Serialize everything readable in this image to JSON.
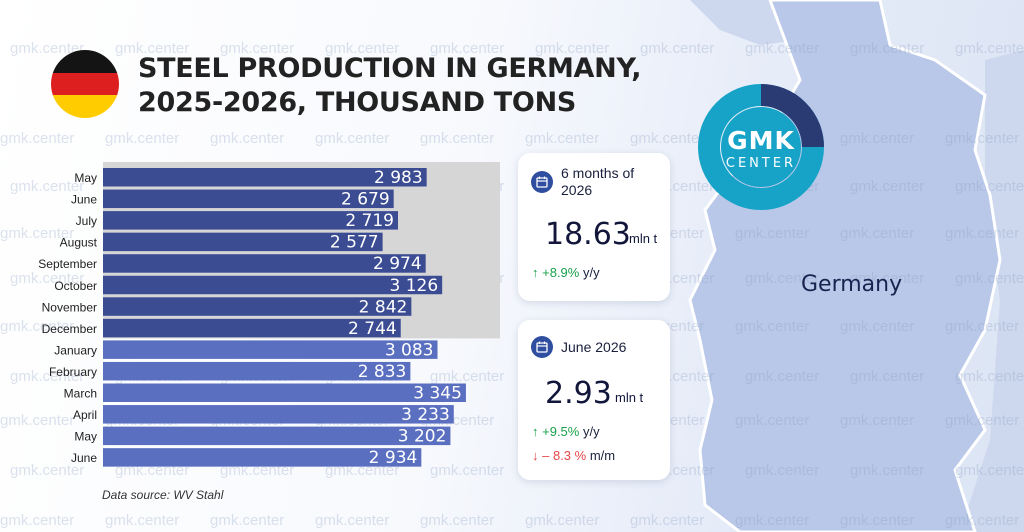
{
  "title": "STEEL PRODUCTION IN GERMANY, 2025-2026, THOUSAND TONS",
  "watermark_text": "gmk.center",
  "source": "Data source: WV Stahl",
  "country_label": "Germany",
  "logo": {
    "main": "GMK",
    "sub": "CENTER"
  },
  "colors": {
    "bar_2025": "#3b4c93",
    "bar_2026": "#5a6fc0",
    "highlight_bg": "#d6d6d6",
    "logo_ring": "#17a3c8",
    "logo_dark": "#2a3b74",
    "up": "#1aa04a",
    "down": "#e54848"
  },
  "card_half": {
    "icon": "calendar-icon",
    "heading": "6 months of 2026",
    "value": "18.63",
    "unit": "mln t",
    "change_value": "+8.9%",
    "change_suffix": "y/y"
  },
  "card_month": {
    "icon": "calendar-icon",
    "heading": "June 2026",
    "value": "2.93",
    "unit": "mln t",
    "change_yy_value": "+9.5%",
    "change_yy_suffix": "y/y",
    "change_mm_value": "– 8.3 %",
    "change_mm_suffix": "m/m"
  },
  "chart_data": {
    "type": "bar",
    "orientation": "horizontal",
    "title": "STEEL PRODUCTION IN GERMANY, 2025-2026, THOUSAND TONS",
    "unit": "thousand tons",
    "categories": [
      "May",
      "June",
      "July",
      "August",
      "September",
      "October",
      "November",
      "December",
      "January",
      "February",
      "March",
      "April",
      "May",
      "June"
    ],
    "values": [
      2983,
      2679,
      2719,
      2577,
      2974,
      3126,
      2842,
      2744,
      3083,
      2833,
      3345,
      3233,
      3202,
      2934
    ],
    "labels": [
      "2 983",
      "2 679",
      "2 719",
      "2 577",
      "2 974",
      "3 126",
      "2 842",
      "2 744",
      "3 083",
      "2 833",
      "3 345",
      "3 233",
      "3 202",
      "2 934"
    ],
    "year_groups": [
      {
        "year": 2025,
        "count": 8
      },
      {
        "year": 2026,
        "count": 6
      }
    ],
    "xlim": [
      0,
      3500
    ],
    "grid": false,
    "legend": "none"
  }
}
